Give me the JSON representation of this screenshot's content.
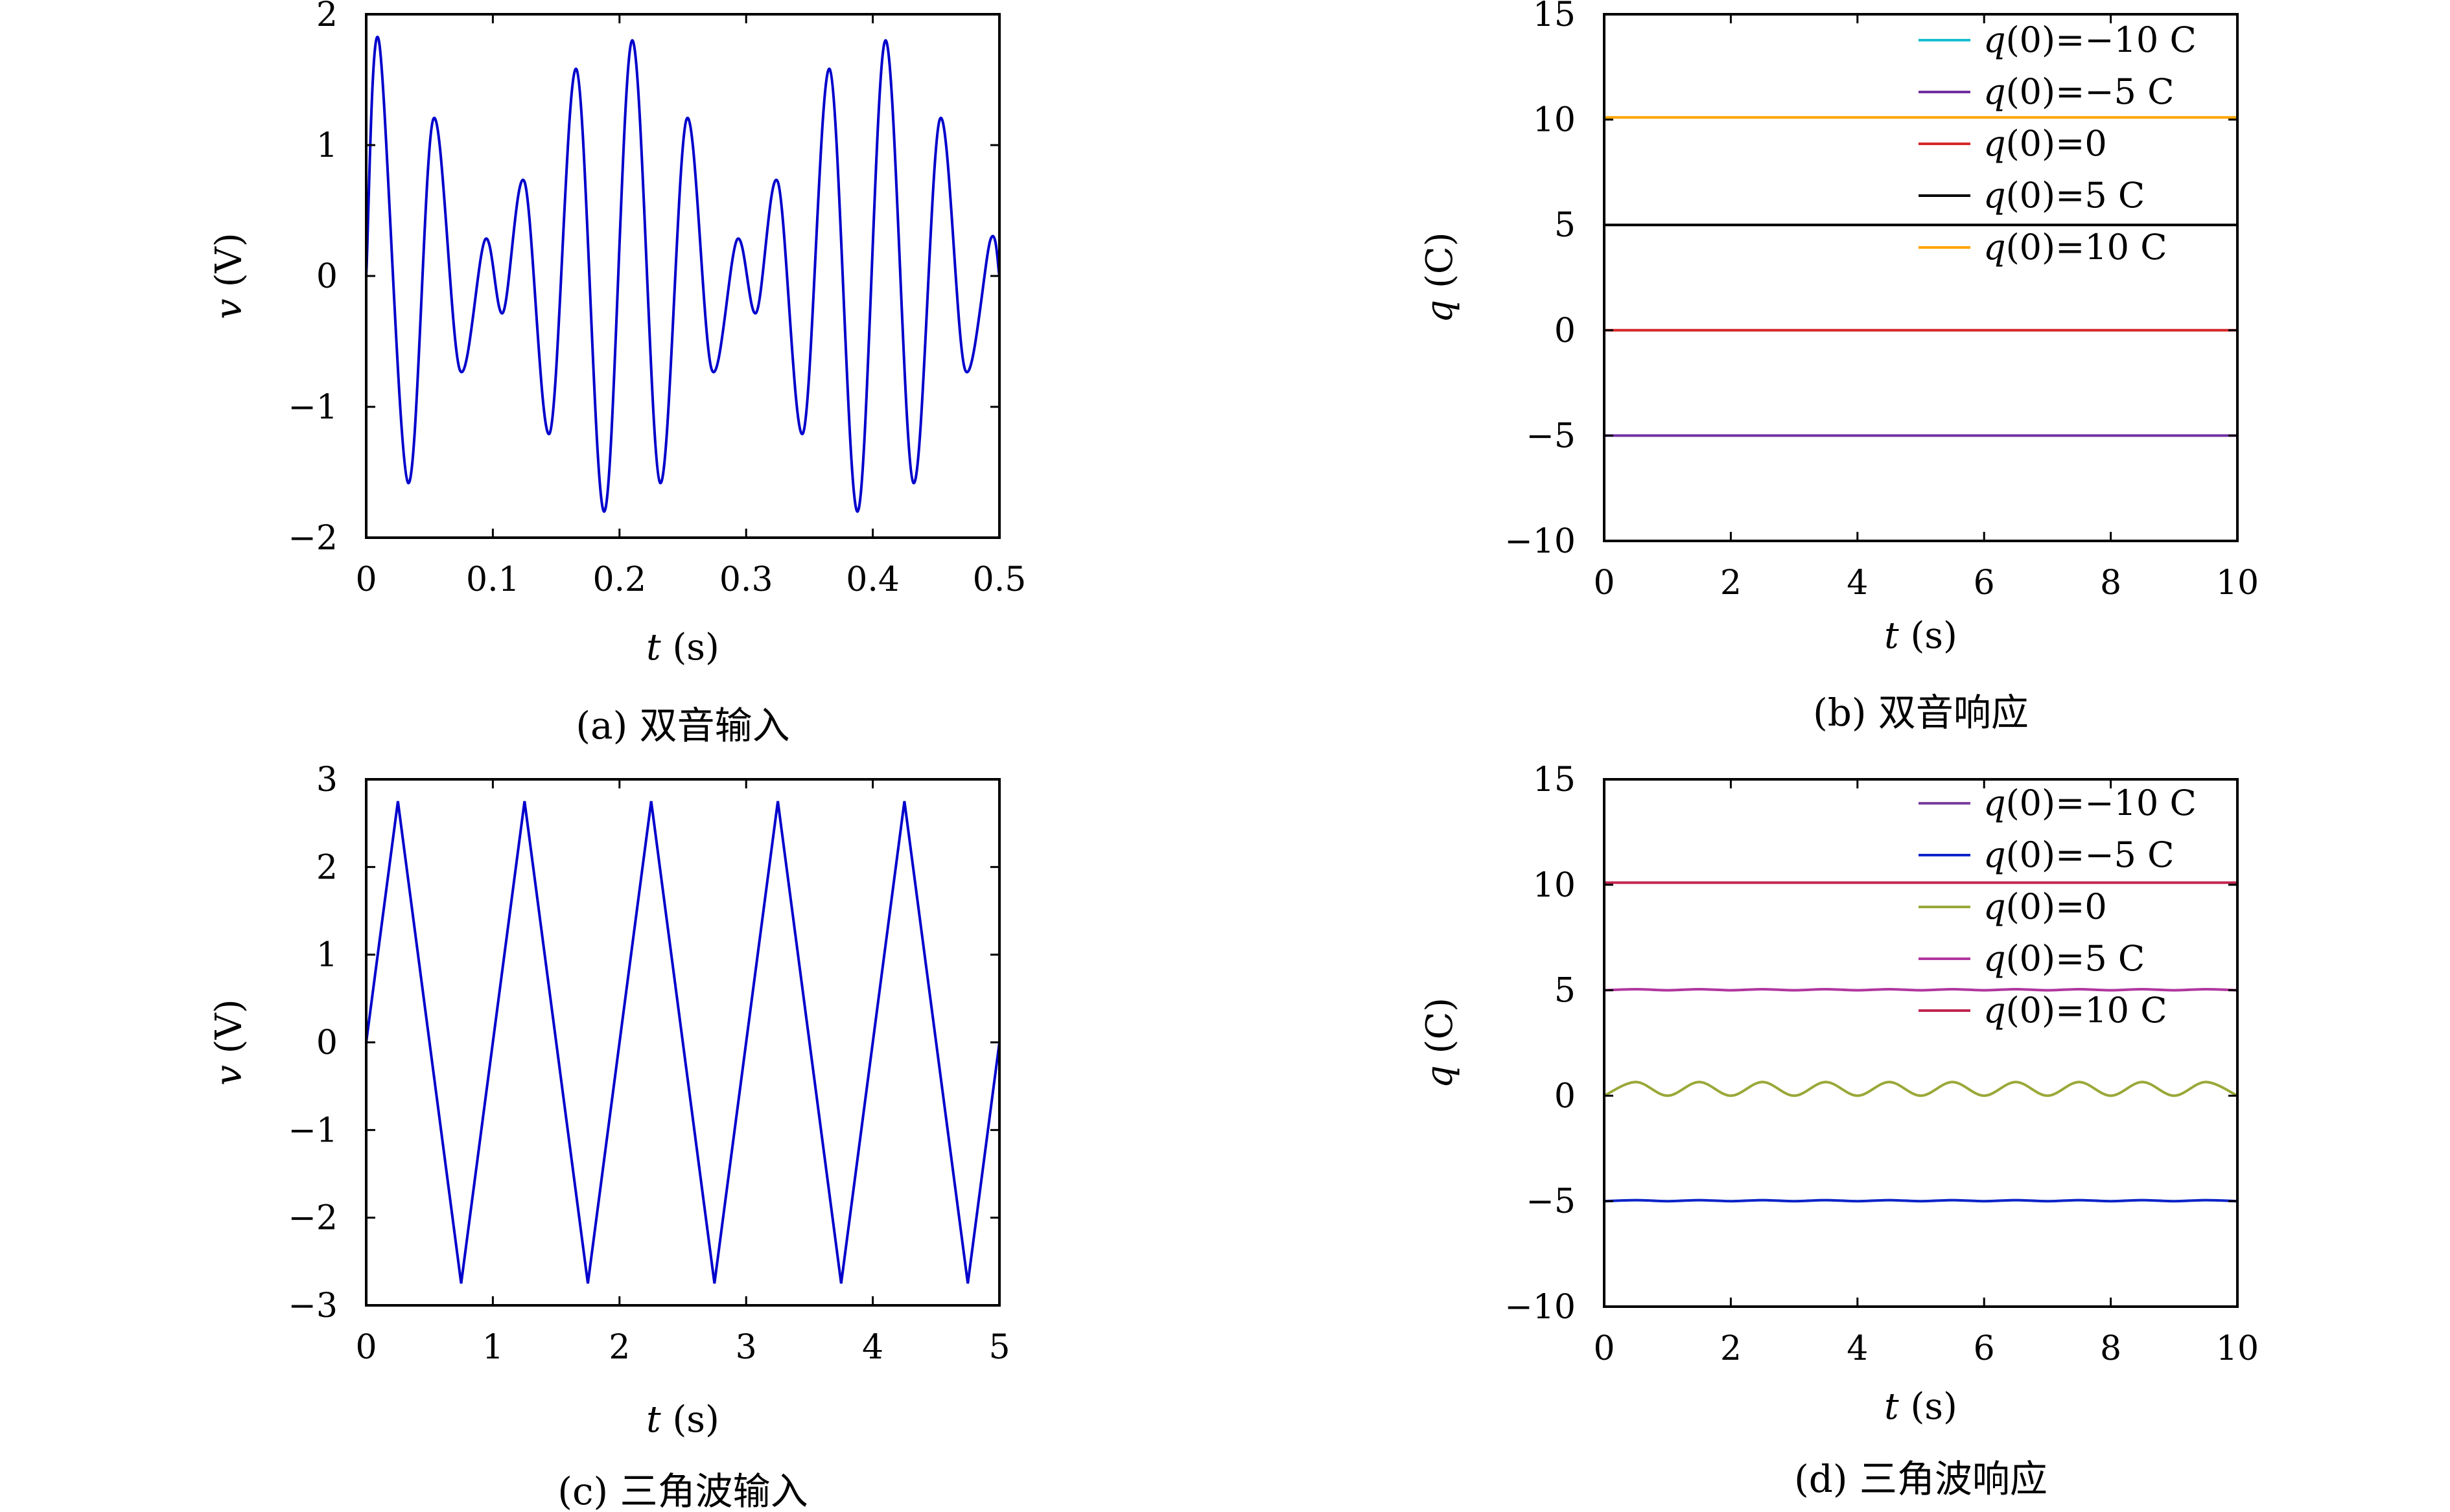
{
  "chart_data": [
    {
      "id": "a",
      "type": "line",
      "caption": "(a) 双音输入",
      "xlabel_var": "t",
      "xlabel_unit": "(s)",
      "ylabel_var": "v",
      "ylabel_unit": "(V)",
      "xlim": [
        0,
        0.5
      ],
      "ylim": [
        -2,
        2
      ],
      "xticks": [
        0,
        0.1,
        0.2,
        0.3,
        0.4,
        0.5
      ],
      "xtick_labels": [
        "0",
        "0.1",
        "0.2",
        "0.3",
        "0.4",
        "0.5"
      ],
      "yticks": [
        -2,
        -1,
        0,
        1,
        2
      ],
      "ytick_labels": [
        "−2",
        "−1",
        "0",
        "1",
        "2"
      ],
      "series": [
        {
          "color": "#0000cc",
          "x": [
            0,
            0.01,
            0.033,
            0.053,
            0.074,
            0.094,
            0.108,
            0.125,
            0.145,
            0.166,
            0.188,
            0.21,
            0.232,
            0.253,
            0.273,
            0.293,
            0.308,
            0.325,
            0.345,
            0.366,
            0.388,
            0.41,
            0.432,
            0.453,
            0.473,
            0.493,
            0.5
          ],
          "y": [
            0,
            1.8,
            -1.58,
            1.2,
            -0.72,
            0.28,
            -0.28,
            0.72,
            -1.2,
            1.58,
            -1.8,
            1.8,
            -1.58,
            1.2,
            -0.72,
            0.28,
            -0.28,
            0.72,
            -1.2,
            1.58,
            -1.8,
            1.8,
            -1.58,
            1.2,
            -0.72,
            0.28,
            0
          ]
        }
      ]
    },
    {
      "id": "b",
      "type": "line",
      "caption": "(b) 双音响应",
      "xlabel_var": "t",
      "xlabel_unit": "(s)",
      "ylabel_var": "q",
      "ylabel_unit": "(C)",
      "xlim": [
        0,
        10
      ],
      "ylim": [
        -10,
        15
      ],
      "xticks": [
        0,
        2,
        4,
        6,
        8,
        10
      ],
      "xtick_labels": [
        "0",
        "2",
        "4",
        "6",
        "8",
        "10"
      ],
      "yticks": [
        -10,
        -5,
        0,
        5,
        10,
        15
      ],
      "ytick_labels": [
        "−10",
        "−5",
        "0",
        "5",
        "10",
        "15"
      ],
      "series": [
        {
          "name": "q(0)=−10 C",
          "name_var": "q",
          "name_rest": "(0)=−10 C",
          "color": "#17becf",
          "x": [
            0,
            10
          ],
          "y": [
            -10,
            -10
          ]
        },
        {
          "name": "q(0)=−5 C",
          "name_var": "q",
          "name_rest": "(0)=−5 C",
          "color": "#7030a0",
          "x": [
            0,
            10
          ],
          "y": [
            -5,
            -5
          ]
        },
        {
          "name": "q(0)=0",
          "name_var": "q",
          "name_rest": "(0)=0",
          "color": "#d62728",
          "x": [
            0,
            10
          ],
          "y": [
            0,
            0
          ]
        },
        {
          "name": "q(0)=5 C",
          "name_var": "q",
          "name_rest": "(0)=5 C",
          "color": "#000000",
          "x": [
            0,
            10
          ],
          "y": [
            5,
            5
          ]
        },
        {
          "name": "q(0)=10 C",
          "name_var": "q",
          "name_rest": "(0)=10 C",
          "color": "#ffa500",
          "x": [
            0,
            10
          ],
          "y": [
            10.1,
            10.1
          ]
        }
      ],
      "legend": "top-right"
    },
    {
      "id": "c",
      "type": "line",
      "caption": "(c) 三角波输入",
      "xlabel_var": "t",
      "xlabel_unit": "(s)",
      "ylabel_var": "v",
      "ylabel_unit": "(V)",
      "xlim": [
        0,
        5
      ],
      "ylim": [
        -3,
        3
      ],
      "xticks": [
        0,
        1,
        2,
        3,
        4,
        5
      ],
      "xtick_labels": [
        "0",
        "1",
        "2",
        "3",
        "4",
        "5"
      ],
      "yticks": [
        -3,
        -2,
        -1,
        0,
        1,
        2,
        3
      ],
      "ytick_labels": [
        "−3",
        "−2",
        "−1",
        "0",
        "1",
        "2",
        "3"
      ],
      "series": [
        {
          "color": "#0000cc",
          "x": [
            0,
            0.25,
            0.75,
            1.25,
            1.75,
            2.25,
            2.75,
            3.25,
            3.75,
            4.25,
            4.75,
            5
          ],
          "y": [
            0,
            2.75,
            -2.75,
            2.75,
            -2.75,
            2.75,
            -2.75,
            2.75,
            -2.75,
            2.75,
            -2.75,
            0
          ]
        }
      ]
    },
    {
      "id": "d",
      "type": "line",
      "caption": "(d) 三角波响应",
      "xlabel_var": "t",
      "xlabel_unit": "(s)",
      "ylabel_var": "q",
      "ylabel_unit": "(C)",
      "xlim": [
        0,
        10
      ],
      "ylim": [
        -10,
        15
      ],
      "xticks": [
        0,
        2,
        4,
        6,
        8,
        10
      ],
      "xtick_labels": [
        "0",
        "2",
        "4",
        "6",
        "8",
        "10"
      ],
      "yticks": [
        -10,
        -5,
        0,
        5,
        10,
        15
      ],
      "ytick_labels": [
        "−10",
        "−5",
        "0",
        "5",
        "10",
        "15"
      ],
      "series": [
        {
          "name": "q(0)=−10 C",
          "name_var": "q",
          "name_rest": "(0)=−10 C",
          "color": "#7b3f9e",
          "x": [
            0,
            10
          ],
          "y": [
            -10,
            -10
          ]
        },
        {
          "name": "q(0)=−5 C",
          "name_var": "q",
          "name_rest": "(0)=−5 C",
          "color": "#0b24c8",
          "x": [
            0,
            0.5,
            1,
            1.5,
            2,
            2.5,
            3,
            3.5,
            4,
            4.5,
            5,
            5.5,
            6,
            6.5,
            7,
            7.5,
            8,
            8.5,
            9,
            9.5,
            10
          ],
          "y": [
            -5,
            -4.95,
            -5,
            -4.95,
            -5,
            -4.95,
            -5,
            -4.95,
            -5,
            -4.95,
            -5,
            -4.95,
            -5,
            -4.95,
            -5,
            -4.95,
            -5,
            -4.95,
            -5,
            -4.95,
            -5
          ]
        },
        {
          "name": "q(0)=0",
          "name_var": "q",
          "name_rest": "(0)=0",
          "color": "#9aa838",
          "x": [
            0,
            0.5,
            1,
            1.5,
            2,
            2.5,
            3,
            3.5,
            4,
            4.5,
            5,
            5.5,
            6,
            6.5,
            7,
            7.5,
            8,
            8.5,
            9,
            9.5,
            10
          ],
          "y": [
            0,
            0.65,
            0,
            0.65,
            0,
            0.65,
            0,
            0.65,
            0,
            0.65,
            0,
            0.65,
            0,
            0.65,
            0,
            0.65,
            0,
            0.65,
            0,
            0.65,
            0
          ]
        },
        {
          "name": "q(0)=5 C",
          "name_var": "q",
          "name_rest": "(0)=5 C",
          "color": "#b0369e",
          "x": [
            0,
            0.5,
            1,
            1.5,
            2,
            2.5,
            3,
            3.5,
            4,
            4.5,
            5,
            5.5,
            6,
            6.5,
            7,
            7.5,
            8,
            8.5,
            9,
            9.5,
            10
          ],
          "y": [
            5,
            5.05,
            5,
            5.05,
            5,
            5.05,
            5,
            5.05,
            5,
            5.05,
            5,
            5.05,
            5,
            5.05,
            5,
            5.05,
            5,
            5.05,
            5,
            5.05,
            5
          ]
        },
        {
          "name": "q(0)=10 C",
          "name_var": "q",
          "name_rest": "(0)=10 C",
          "color": "#c0254f",
          "x": [
            0,
            10
          ],
          "y": [
            10.1,
            10.1
          ]
        }
      ],
      "legend": "top-right"
    }
  ]
}
